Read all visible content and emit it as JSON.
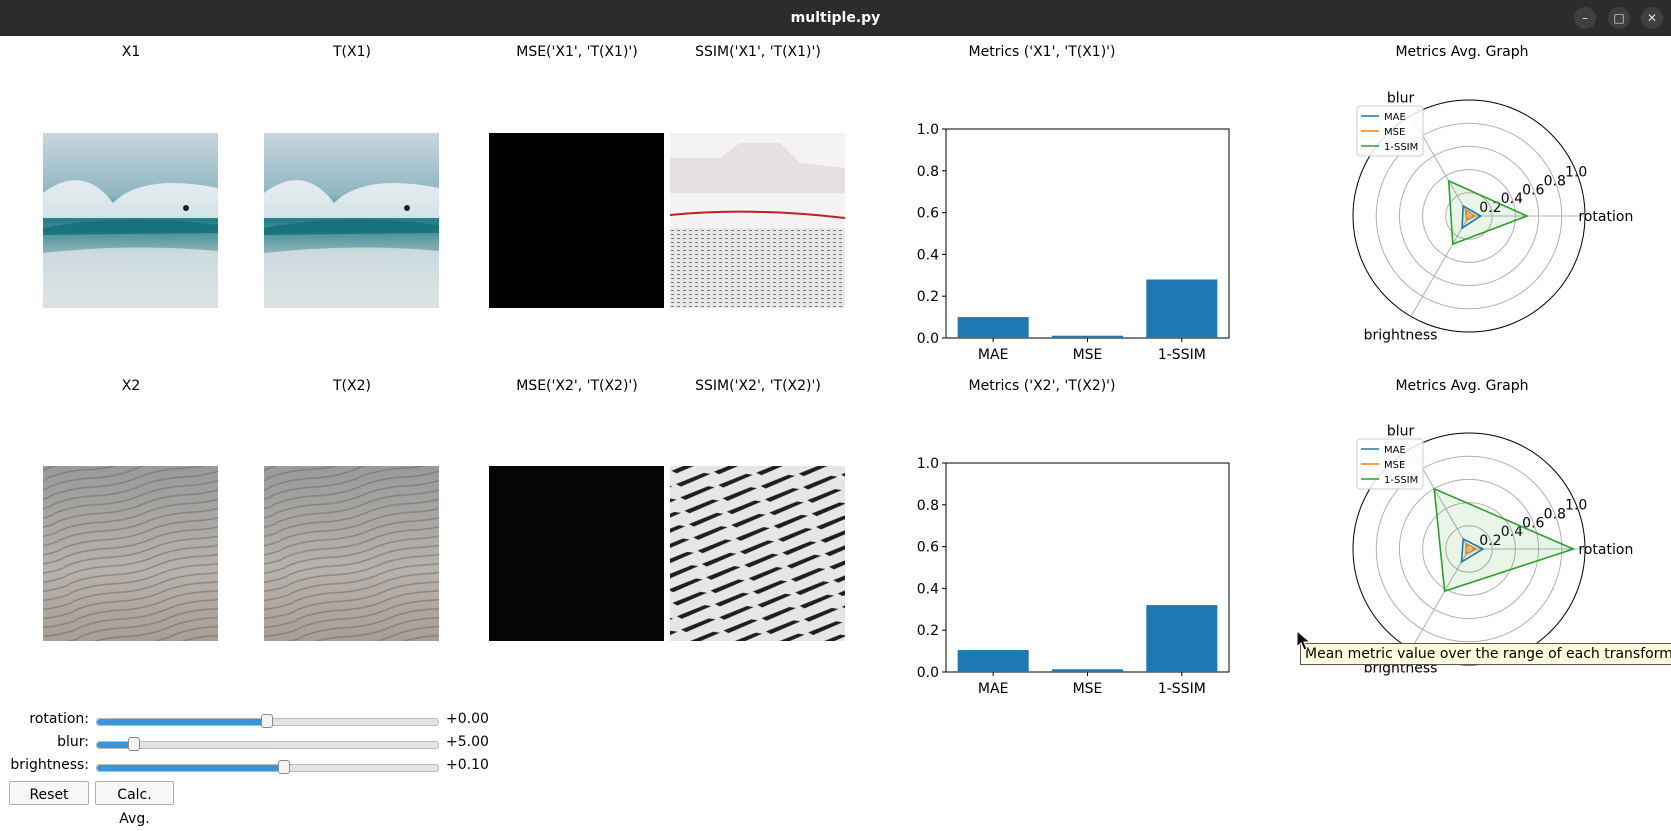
{
  "window": {
    "title": "multiple.py",
    "minimize_icon": "minimize-icon",
    "maximize_icon": "maximize-icon",
    "close_icon": "close-icon"
  },
  "rows": [
    {
      "x_title": "X1",
      "tx_title": "T(X1)",
      "mse_title": "MSE('X1', 'T(X1)')",
      "ssim_title": "SSIM('X1', 'T(X1)')",
      "metrics_title": "Metrics ('X1', 'T(X1)')",
      "avg_title": "Metrics Avg. Graph",
      "image_kind": "wave"
    },
    {
      "x_title": "X2",
      "tx_title": "T(X2)",
      "mse_title": "MSE('X2', 'T(X2)')",
      "ssim_title": "SSIM('X2', 'T(X2)')",
      "metrics_title": "Metrics ('X2', 'T(X2)')",
      "avg_title": "Metrics Avg. Graph",
      "image_kind": "sand"
    }
  ],
  "chart_data": [
    {
      "type": "bar",
      "title": "Metrics ('X1', 'T(X1)')",
      "categories": [
        "MAE",
        "MSE",
        "1-SSIM"
      ],
      "values": [
        0.1,
        0.011,
        0.28
      ],
      "ylim": [
        0,
        1
      ],
      "yticks": [
        "0.0",
        "0.2",
        "0.4",
        "0.6",
        "0.8",
        "1.0"
      ],
      "color": "#1f77b4"
    },
    {
      "type": "radar",
      "title": "Metrics Avg. Graph",
      "axes": [
        "rotation",
        "blur",
        "brightness"
      ],
      "rticks": [
        "0.2",
        "0.4",
        "0.6",
        "0.8",
        "1.0"
      ],
      "rlim": [
        0,
        1
      ],
      "series": [
        {
          "name": "MAE",
          "color": "#1f77b4",
          "values": [
            0.1,
            0.1,
            0.12
          ]
        },
        {
          "name": "MSE",
          "color": "#ff7f0e",
          "values": [
            0.05,
            0.06,
            0.04
          ]
        },
        {
          "name": "1-SSIM",
          "color": "#2ca02c",
          "values": [
            0.5,
            0.35,
            0.28
          ]
        }
      ]
    },
    {
      "type": "bar",
      "title": "Metrics ('X2', 'T(X2)')",
      "categories": [
        "MAE",
        "MSE",
        "1-SSIM"
      ],
      "values": [
        0.105,
        0.013,
        0.32
      ],
      "ylim": [
        0,
        1
      ],
      "yticks": [
        "0.0",
        "0.2",
        "0.4",
        "0.6",
        "0.8",
        "1.0"
      ],
      "color": "#1f77b4"
    },
    {
      "type": "radar",
      "title": "Metrics Avg. Graph",
      "axes": [
        "rotation",
        "blur",
        "brightness"
      ],
      "rticks": [
        "0.2",
        "0.4",
        "0.6",
        "0.8",
        "1.0"
      ],
      "rlim": [
        0,
        1
      ],
      "series": [
        {
          "name": "MAE",
          "color": "#1f77b4",
          "values": [
            0.12,
            0.1,
            0.13
          ]
        },
        {
          "name": "MSE",
          "color": "#ff7f0e",
          "values": [
            0.06,
            0.05,
            0.05
          ]
        },
        {
          "name": "1-SSIM",
          "color": "#2ca02c",
          "values": [
            0.9,
            0.6,
            0.42
          ]
        }
      ]
    }
  ],
  "controls": {
    "sliders": [
      {
        "label": "rotation:",
        "value": "+0.00",
        "fraction": 0.5
      },
      {
        "label": "blur:",
        "value": "+5.00",
        "fraction": 0.11
      },
      {
        "label": "brightness:",
        "value": "+0.10",
        "fraction": 0.55
      }
    ],
    "reset_label": "Reset",
    "calc_label": "Calc. Avg."
  },
  "tooltip": "Mean metric value over the range of each transform."
}
